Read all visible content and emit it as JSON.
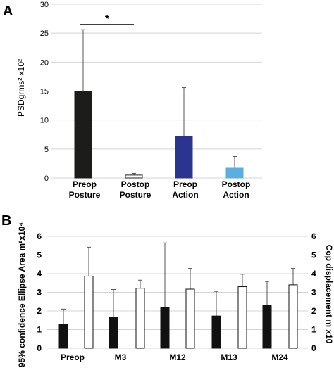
{
  "panels": {
    "a": {
      "letter": "A"
    },
    "b": {
      "letter": "B"
    }
  },
  "chart_data": [
    {
      "type": "bar",
      "ylabel": "PSDgrms² x10²",
      "ylim": [
        0,
        30
      ],
      "yticks": [
        "0",
        "5",
        "10",
        "15",
        "20",
        "25",
        "30"
      ],
      "grid": true,
      "categories": [
        [
          "Preop",
          "Posture"
        ],
        [
          "Postop",
          "Posture"
        ],
        [
          "Preop",
          "Action"
        ],
        [
          "Postop",
          "Action"
        ]
      ],
      "values": [
        15.0,
        0.5,
        7.2,
        1.7
      ],
      "error_upper": [
        25.6,
        0.8,
        15.6,
        3.7
      ],
      "colors": [
        "#1c1c1a",
        "#ffffff",
        "#2b3590",
        "#5aafe0"
      ],
      "annotations": [
        {
          "text": "*",
          "between": [
            0,
            1
          ]
        }
      ]
    },
    {
      "type": "bar",
      "ylabel_left": "95% confidence Ellipse Area m²x10⁴",
      "ylabel_right": "Cop displacement m x10",
      "ylim": [
        0,
        6
      ],
      "yticks": [
        "0",
        "1",
        "2",
        "3",
        "4",
        "5",
        "6"
      ],
      "grid": true,
      "categories": [
        "Preop",
        "M3",
        "M12",
        "M13",
        "M24"
      ],
      "series": [
        {
          "values": [
            1.3,
            1.65,
            2.2,
            1.73,
            2.32
          ],
          "error_upper": [
            2.1,
            3.15,
            5.65,
            3.05,
            3.58
          ],
          "color": "#111111"
        },
        {
          "values": [
            3.87,
            3.22,
            3.17,
            3.3,
            3.4
          ],
          "error_upper": [
            5.42,
            3.65,
            4.28,
            3.97,
            4.28
          ],
          "color": "#ffffff"
        }
      ]
    }
  ]
}
